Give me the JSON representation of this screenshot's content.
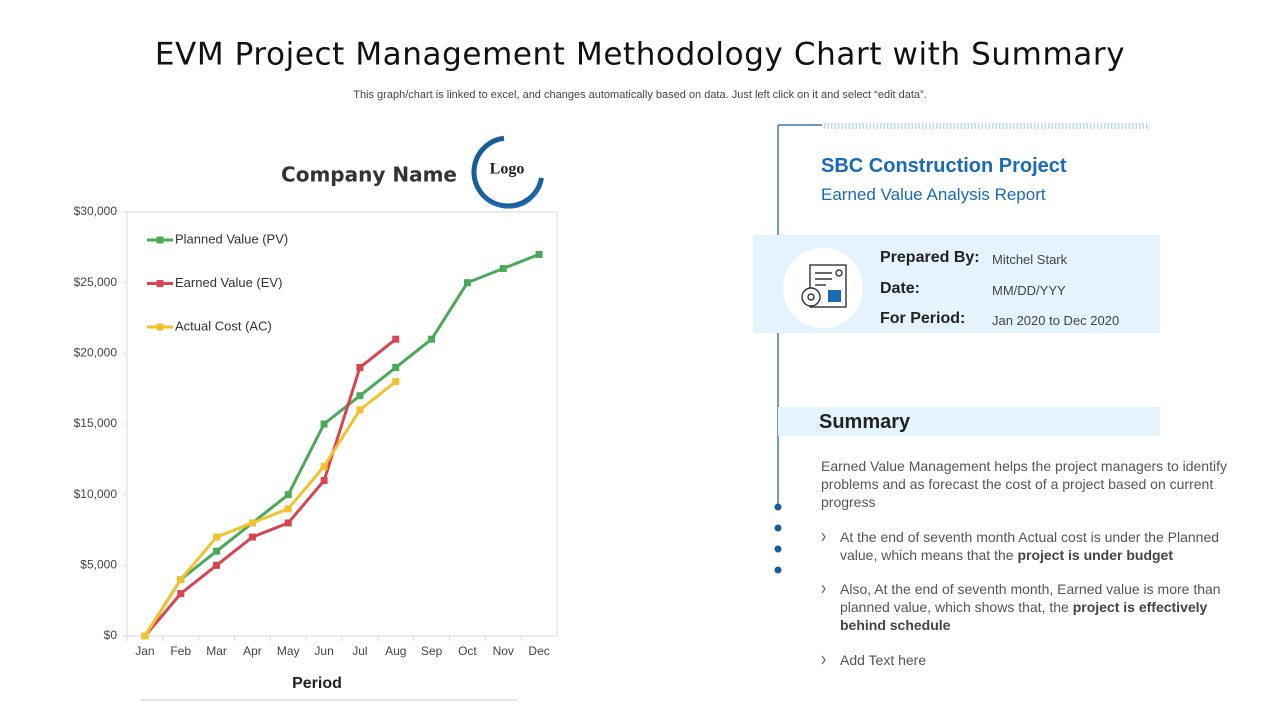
{
  "title": "EVM Project Management Methodology Chart with Summary",
  "subtitle": "This graph/chart is linked to excel, and changes automatically based on data. Just left click on it and select “edit data”.",
  "company_name": "Company Name",
  "logo": "Logo",
  "chart_data": {
    "type": "line",
    "categories": [
      "Jan",
      "Feb",
      "Mar",
      "Apr",
      "May",
      "Jun",
      "Jul",
      "Aug",
      "Sep",
      "Oct",
      "Nov",
      "Dec"
    ],
    "series": [
      {
        "name": "Planned Value (PV)",
        "color": "#4aaa5a",
        "values": [
          0,
          4000,
          6000,
          8000,
          10000,
          15000,
          17000,
          19000,
          21000,
          25000,
          26000,
          27000
        ]
      },
      {
        "name": "Earned Value (EV)",
        "color": "#d64550",
        "values": [
          0,
          3000,
          5000,
          7000,
          8000,
          11000,
          19000,
          21000,
          null,
          null,
          null,
          null
        ]
      },
      {
        "name": "Actual Cost (AC)",
        "color": "#f2c12e",
        "values": [
          0,
          4000,
          7000,
          8000,
          9000,
          12000,
          16000,
          18000,
          null,
          null,
          null,
          null
        ]
      }
    ],
    "ylim": [
      0,
      30000
    ],
    "yticks": [
      {
        "value": 0,
        "label": "$0"
      },
      {
        "value": 5000,
        "label": "$5,000"
      },
      {
        "value": 10000,
        "label": "$10,000"
      },
      {
        "value": 15000,
        "label": "$15,000"
      },
      {
        "value": 20000,
        "label": "$20,000"
      },
      {
        "value": 25000,
        "label": "$25,000"
      },
      {
        "value": 30000,
        "label": "$30,000"
      }
    ],
    "xlabel": "Period",
    "legend": "upper left",
    "grid": false
  },
  "project": {
    "name": "SBC Construction Project",
    "report": "Earned Value Analysis Report",
    "info": [
      {
        "label": "Prepared By:",
        "value": "Mitchel Stark"
      },
      {
        "label": "Date:",
        "value": "MM/DD/YYY"
      },
      {
        "label": "For Period:",
        "value": "Jan 2020 to Dec 2020"
      }
    ]
  },
  "summary": {
    "heading": "Summary",
    "intro": "Earned Value Management helps the project managers to identify problems and as forecast the cost of a project based on current progress",
    "bullets": [
      {
        "text": "At the end of seventh month Actual cost is under the Planned value, which means that the ",
        "bold": "project is under budget"
      },
      {
        "text": "Also, At the end of seventh month, Earned value is more than planned value, which shows that, the ",
        "bold": "project is effectively behind schedule"
      },
      {
        "text": "Add Text here"
      }
    ]
  }
}
